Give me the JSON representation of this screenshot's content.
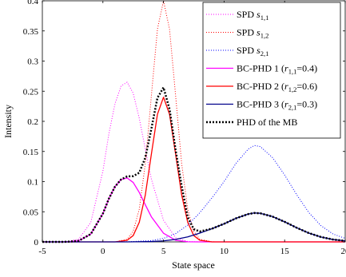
{
  "chart_data": {
    "type": "line",
    "xlabel": "State space",
    "ylabel": "Intensity",
    "xlim": [
      -5,
      20
    ],
    "ylim": [
      0,
      0.4
    ],
    "x_ticks": [
      "-5",
      "0",
      "5",
      "10",
      "15",
      "20"
    ],
    "y_ticks": [
      "0",
      "0.05",
      "0.1",
      "0.15",
      "0.2",
      "0.25",
      "0.3",
      "0.35",
      "0.4"
    ],
    "x_tick_values": [
      -5,
      0,
      5,
      10,
      15,
      20
    ],
    "y_tick_values": [
      0,
      0.05,
      0.1,
      0.15,
      0.2,
      0.25,
      0.3,
      0.35,
      0.4
    ],
    "grid": false,
    "legend_position": "top-right",
    "series": [
      {
        "name_parts": [
          "SPD ",
          "s",
          "1,1",
          ""
        ],
        "color": "#ff00ff",
        "style": "dotted",
        "x": [
          -5,
          -4,
          -3,
          -2,
          -1,
          0,
          0.5,
          1,
          1.5,
          2,
          2.5,
          3,
          3.5,
          4,
          5,
          6,
          7,
          8,
          9,
          10,
          15,
          20
        ],
        "y": [
          0,
          0,
          0.0003,
          0.0045,
          0.0324,
          0.1176,
          0.1803,
          0.2294,
          0.2587,
          0.265,
          0.2466,
          0.2051,
          0.1537,
          0.1041,
          0.0359,
          0.0068,
          0.0006,
          0,
          0,
          0,
          0,
          0
        ]
      },
      {
        "name_parts": [
          "SPD ",
          "s",
          "1,2",
          ""
        ],
        "color": "#ff0000",
        "style": "dotted",
        "x": [
          -5,
          0,
          1,
          2,
          2.5,
          3,
          3.5,
          4,
          4.5,
          5,
          5.5,
          6,
          6.5,
          7,
          7.5,
          8,
          9,
          10,
          20
        ],
        "y": [
          0,
          0,
          0,
          0.0044,
          0.0175,
          0.0541,
          0.1299,
          0.2427,
          0.3529,
          0.4,
          0.3529,
          0.2427,
          0.1299,
          0.0541,
          0.0175,
          0.0044,
          0.0001,
          0,
          0
        ]
      },
      {
        "name_parts": [
          "SPD ",
          "s",
          "2,1",
          ""
        ],
        "color": "#0000ff",
        "style": "dotted",
        "x": [
          -5,
          0,
          2,
          4,
          5,
          6,
          7,
          8,
          9,
          10,
          11,
          12,
          12.5,
          13,
          14,
          15,
          16,
          17,
          18,
          19,
          20
        ],
        "y": [
          0,
          0,
          0.0001,
          0.0021,
          0.0058,
          0.0137,
          0.0278,
          0.0485,
          0.0729,
          0.1001,
          0.1307,
          0.1541,
          0.16,
          0.1581,
          0.1399,
          0.1109,
          0.0781,
          0.0485,
          0.0269,
          0.013,
          0.0058
        ]
      },
      {
        "name_parts": [
          "BC-PHD 1 (",
          "r",
          "1,1",
          "=0.4)"
        ],
        "color": "#ff00ff",
        "style": "solid",
        "x": [
          -5,
          -4,
          -3,
          -2,
          -1,
          0,
          0.5,
          1,
          1.5,
          2,
          2.5,
          3,
          3.5,
          4,
          5,
          6,
          7,
          8,
          20
        ],
        "y": [
          0,
          0,
          0.0001,
          0.0018,
          0.013,
          0.047,
          0.0721,
          0.0918,
          0.1035,
          0.106,
          0.0986,
          0.082,
          0.0615,
          0.0416,
          0.0144,
          0.0027,
          0.0002,
          0,
          0
        ]
      },
      {
        "name_parts": [
          "BC-PHD 2 (",
          "r",
          "1,2",
          "=0.6)"
        ],
        "color": "#ff0000",
        "style": "solid",
        "x": [
          -5,
          0,
          1,
          2,
          2.5,
          3,
          3.5,
          4,
          4.5,
          5,
          5.5,
          6,
          6.5,
          7,
          7.5,
          8,
          9,
          10,
          20
        ],
        "y": [
          0,
          0,
          0,
          0.0027,
          0.0105,
          0.0325,
          0.0779,
          0.1456,
          0.2117,
          0.24,
          0.2117,
          0.1456,
          0.0779,
          0.0325,
          0.0105,
          0.0027,
          0,
          0,
          0
        ]
      },
      {
        "name_parts": [
          "BC-PHD 3 (",
          "r",
          "2,1",
          "=0.3)"
        ],
        "color": "#00008b",
        "style": "solid",
        "x": [
          -5,
          0,
          2,
          4,
          5,
          6,
          7,
          8,
          9,
          10,
          11,
          12,
          12.5,
          13,
          14,
          15,
          16,
          17,
          18,
          19,
          20
        ],
        "y": [
          0,
          0,
          0,
          0.0006,
          0.0017,
          0.0041,
          0.0083,
          0.0146,
          0.0219,
          0.03,
          0.0392,
          0.0462,
          0.048,
          0.0474,
          0.042,
          0.0333,
          0.0234,
          0.0146,
          0.0081,
          0.0039,
          0.0017
        ]
      },
      {
        "name_parts": [
          "PHD of the MB",
          "",
          "",
          ""
        ],
        "color": "#000000",
        "style": "dotted-bold",
        "x": [
          -5,
          -4,
          -3,
          -2,
          -1,
          0,
          0.5,
          1,
          1.5,
          2,
          2.5,
          3,
          3.5,
          4,
          4.5,
          5,
          5.5,
          6,
          6.5,
          7,
          7.5,
          8,
          9,
          10,
          11,
          12,
          12.5,
          13,
          14,
          15,
          16,
          17,
          18,
          19,
          20
        ],
        "y": [
          0,
          0,
          0.0001,
          0.0018,
          0.013,
          0.047,
          0.0721,
          0.0918,
          0.1035,
          0.1087,
          0.1091,
          0.1147,
          0.1398,
          0.1878,
          0.2389,
          0.2561,
          0.2202,
          0.1524,
          0.0925,
          0.0408,
          0.0211,
          0.0173,
          0.0219,
          0.03,
          0.0392,
          0.0462,
          0.048,
          0.0474,
          0.042,
          0.0333,
          0.0234,
          0.0146,
          0.0081,
          0.0039,
          0.0017
        ]
      }
    ]
  }
}
